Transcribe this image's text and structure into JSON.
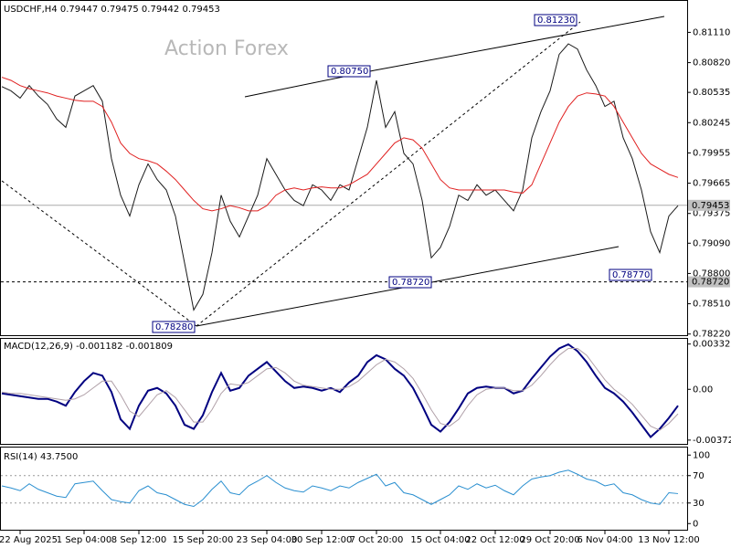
{
  "chart_data": [
    {
      "type": "line",
      "title": "USDCHF,H4 0.79447 0.79475 0.79442 0.79453",
      "watermark": "Action Forex",
      "categories": [
        null,
        null,
        "22 Aug 2025",
        null,
        null,
        null,
        null,
        null,
        null,
        "1 Sep 04:00",
        null,
        null,
        null,
        null,
        null,
        "8 Sep 12:00",
        null,
        null,
        null,
        null,
        null,
        null,
        "15 Sep 20:00",
        null,
        null,
        null,
        null,
        null,
        null,
        "23 Sep 04:00",
        null,
        null,
        null,
        null,
        null,
        "30 Sep 12:00",
        null,
        null,
        null,
        null,
        null,
        "7 Oct 20:00",
        null,
        null,
        null,
        null,
        null,
        null,
        "15 Oct 04:00",
        null,
        null,
        null,
        null,
        null,
        "22 Oct 12:00",
        null,
        null,
        null,
        null,
        null,
        "29 Oct 20:00",
        null,
        null,
        null,
        null,
        null,
        "6 Nov 04:00",
        null,
        null,
        null,
        null,
        null,
        null,
        "13 Nov 12:00",
        null
      ],
      "series": [
        {
          "color": "#1a1a1a",
          "values": [
            0.8059,
            0.8055,
            0.8048,
            0.806,
            0.805,
            0.8042,
            0.8028,
            0.802,
            0.805,
            0.8055,
            0.806,
            0.8045,
            0.799,
            0.7955,
            0.7935,
            0.7965,
            0.7985,
            0.797,
            0.796,
            0.7935,
            0.789,
            0.7845,
            0.786,
            0.79,
            0.7955,
            0.793,
            0.7915,
            0.7935,
            0.7955,
            0.799,
            0.7975,
            0.796,
            0.795,
            0.7945,
            0.7965,
            0.796,
            0.795,
            0.7965,
            0.796,
            0.799,
            0.802,
            0.8065,
            0.802,
            0.8035,
            0.7995,
            0.7985,
            0.795,
            0.7895,
            0.7905,
            0.7925,
            0.7955,
            0.795,
            0.7965,
            0.7955,
            0.796,
            0.795,
            0.794,
            0.796,
            0.801,
            0.8035,
            0.8055,
            0.809,
            0.81,
            0.8095,
            0.8075,
            0.806,
            0.804,
            0.8045,
            0.801,
            0.799,
            0.796,
            0.792,
            0.79,
            0.7935,
            0.7945
          ]
        },
        {
          "color": "#e02020",
          "values": [
            0.8068,
            0.8065,
            0.806,
            0.8057,
            0.8055,
            0.8053,
            0.805,
            0.8048,
            0.8046,
            0.8045,
            0.8045,
            0.804,
            0.8025,
            0.8005,
            0.7995,
            0.799,
            0.7988,
            0.7985,
            0.7978,
            0.797,
            0.796,
            0.795,
            0.7942,
            0.794,
            0.7942,
            0.7945,
            0.7943,
            0.794,
            0.794,
            0.7945,
            0.7955,
            0.796,
            0.7962,
            0.796,
            0.7962,
            0.7963,
            0.7962,
            0.7962,
            0.7965,
            0.797,
            0.7975,
            0.7985,
            0.7995,
            0.8005,
            0.801,
            0.8008,
            0.8,
            0.7985,
            0.797,
            0.7962,
            0.796,
            0.796,
            0.796,
            0.796,
            0.796,
            0.796,
            0.7958,
            0.7957,
            0.7965,
            0.7985,
            0.8005,
            0.8025,
            0.804,
            0.805,
            0.8053,
            0.8052,
            0.805,
            0.804,
            0.8025,
            0.801,
            0.7995,
            0.7985,
            0.798,
            0.7975,
            0.7972
          ]
        }
      ],
      "ylim": [
        0.782,
        0.8142
      ],
      "yticks": [
        {
          "value": 0.8111,
          "label": "0.81110"
        },
        {
          "value": 0.8082,
          "label": "0.80820"
        },
        {
          "value": 0.80535,
          "label": "0.80535"
        },
        {
          "value": 0.80245,
          "label": "0.80245"
        },
        {
          "value": 0.79955,
          "label": "0.79955"
        },
        {
          "value": 0.79665,
          "label": "0.79665"
        },
        {
          "value": 0.79375,
          "label": "0.79375"
        },
        {
          "value": 0.7909,
          "label": "0.79090"
        },
        {
          "value": 0.788,
          "label": "0.78800"
        },
        {
          "value": 0.7851,
          "label": "0.78510"
        },
        {
          "value": 0.7822,
          "label": "0.78220"
        }
      ],
      "price_line": 0.79453,
      "level_line": {
        "value": 0.7872,
        "label": "0.78720"
      },
      "annotations": [
        "0.78280",
        "0.80750",
        "0.81230",
        "0.78720",
        "0.78770"
      ]
    },
    {
      "type": "line",
      "title": "MACD(12,26,9) -0.001182 -0.001809",
      "series": [
        {
          "color": "#000080",
          "values": [
            -0.0003,
            -0.0004,
            -0.0005,
            -0.0006,
            -0.0007,
            -0.0007,
            -0.0009,
            -0.0012,
            -0.0002,
            0.0006,
            0.0012,
            0.001,
            -0.0002,
            -0.0022,
            -0.0029,
            -0.0012,
            -0.0001,
            0.0001,
            -0.0003,
            -0.0012,
            -0.0026,
            -0.0029,
            -0.0019,
            -0.0002,
            0.0012,
            -0.0001,
            0.0001,
            0.001,
            0.0015,
            0.002,
            0.0013,
            0.0006,
            0.0001,
            0.0002,
            0.0001,
            -0.0001,
            0.0001,
            -0.0002,
            0.0005,
            0.001,
            0.002,
            0.0025,
            0.0022,
            0.0015,
            0.001,
            0.0001,
            -0.0012,
            -0.0026,
            -0.0031,
            -0.0024,
            -0.0014,
            -0.0003,
            0.0001,
            0.0002,
            0.0001,
            0.0001,
            -0.0003,
            -0.0001,
            0.0008,
            0.0016,
            0.0024,
            0.003,
            0.0033,
            0.0028,
            0.002,
            0.001,
            0.0001,
            -0.0003,
            -0.0009,
            -0.0017,
            -0.0026,
            -0.0035,
            -0.0029,
            -0.0021,
            -0.0012
          ]
        },
        {
          "color": "#b0a0a8",
          "values": [
            -0.0002,
            -0.0003,
            -0.0003,
            -0.0004,
            -0.0005,
            -0.0006,
            -0.0007,
            -0.0008,
            -0.0007,
            -0.0004,
            0.0001,
            0.0006,
            0.0006,
            -0.0004,
            -0.0016,
            -0.002,
            -0.0012,
            -0.0004,
            -0.0001,
            -0.0006,
            -0.0015,
            -0.0024,
            -0.0024,
            -0.0015,
            -0.0003,
            0.0004,
            0.0003,
            0.0005,
            0.001,
            0.0015,
            0.0016,
            0.0012,
            0.0006,
            0.0003,
            0.0002,
            0.0001,
            0.0,
            0.0,
            0.0002,
            0.0006,
            0.0012,
            0.0018,
            0.0022,
            0.002,
            0.0015,
            0.0008,
            -0.0003,
            -0.0015,
            -0.0025,
            -0.0027,
            -0.0022,
            -0.0012,
            -0.0004,
            0.0,
            0.0001,
            0.0001,
            -0.0001,
            -0.0001,
            0.0003,
            0.001,
            0.0018,
            0.0025,
            0.003,
            0.003,
            0.0025,
            0.0016,
            0.0007,
            0.0,
            -0.0005,
            -0.0011,
            -0.0019,
            -0.0027,
            -0.003,
            -0.0025,
            -0.0018
          ]
        }
      ],
      "ylim": [
        -0.004,
        0.0037
      ],
      "yticks": [
        0.003321,
        {
          "value": 0,
          "label": "0.00"
        },
        -0.003723
      ]
    },
    {
      "type": "line",
      "title": "RSI(14) 43.7500",
      "series": [
        {
          "color": "#2a8fd0",
          "values": [
            55,
            52,
            48,
            58,
            50,
            45,
            40,
            38,
            58,
            60,
            62,
            48,
            35,
            32,
            30,
            48,
            55,
            45,
            42,
            35,
            28,
            25,
            35,
            50,
            62,
            45,
            42,
            55,
            62,
            70,
            60,
            52,
            48,
            46,
            55,
            52,
            48,
            55,
            52,
            60,
            66,
            72,
            55,
            60,
            45,
            42,
            35,
            28,
            35,
            42,
            55,
            50,
            58,
            52,
            56,
            48,
            42,
            55,
            65,
            68,
            70,
            75,
            78,
            72,
            65,
            62,
            55,
            58,
            45,
            42,
            35,
            30,
            28,
            45,
            43.75
          ]
        }
      ],
      "ylim": [
        -9,
        111
      ],
      "yticks": [
        100,
        70,
        30,
        0
      ],
      "levels": [
        70,
        30
      ]
    }
  ]
}
